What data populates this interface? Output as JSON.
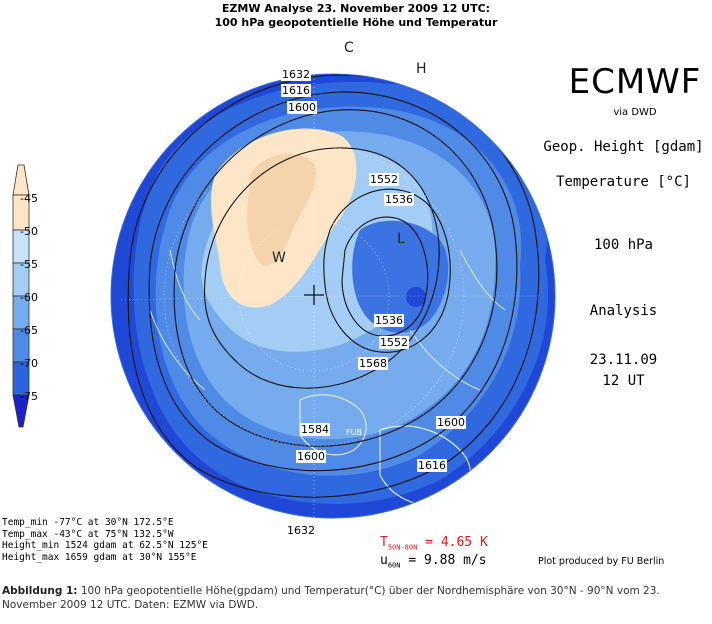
{
  "header": {
    "line1": "EZMW Analyse 23. November 2009 12 UTC:",
    "line2": "100 hPa geopotentielle Höhe und Temperatur"
  },
  "brand": {
    "name": "ECMWF",
    "via": "via DWD"
  },
  "panel": {
    "variable1": "Geop. Height [gdam]",
    "variable2": "Temperature [°C]",
    "level": "100 hPa",
    "kind": "Analysis",
    "date": "23.11.09",
    "time": "12 UT"
  },
  "colorbar": {
    "labels": [
      "-45",
      "-50",
      "-55",
      "-60",
      "-65",
      "-70",
      "-75"
    ],
    "colors": [
      "#fde6c8",
      "#c8e2fa",
      "#a4cdf5",
      "#76acee",
      "#4d8be6",
      "#2c64dd",
      "#1a3fd0",
      "#1a22c8"
    ]
  },
  "map": {
    "contour_labels": [
      "1632",
      "1616",
      "1600",
      "1552",
      "1536",
      "1536",
      "1552",
      "1568",
      "1584",
      "1600",
      "1600",
      "1616",
      "1632"
    ],
    "markers": {
      "C": "C",
      "H": "H",
      "W": "W",
      "L": "L",
      "fub": "FUB",
      "pole": "+"
    },
    "colors": {
      "ocean_deep": "#1f48d6",
      "mid": "#4f8ae6",
      "light": "#9ec8f4",
      "warm": "#f5d8b6",
      "coast": "#dfe9f7"
    }
  },
  "stats": {
    "temp_min": "Temp_min  -77°C at 30°N  172.5°E",
    "temp_max": "Temp_max  -43°C at 75°N  132.5°W",
    "height_min": "Height_min 1524 gdam at 62.5°N 125°E",
    "height_max": "Height_max 1659 gdam at 30°N  155°E"
  },
  "diagnostics": {
    "t_label": "T",
    "t_sub": "50N-80N",
    "t_value": "= 4.65 K",
    "u_label": "u",
    "u_sub": "60N",
    "u_value": "=  9.88 m/s"
  },
  "credit": "Plot produced by FU Berlin",
  "caption": {
    "bold": "Abbildung 1:",
    "text": " 100 hPa geopotentielle Höhe(gpdam) und Temperatur(°C) über der Nordhemisphäre von 30°N - 90°N vom 23. November 2009 12 UTC. Daten: EZMW via DWD."
  }
}
